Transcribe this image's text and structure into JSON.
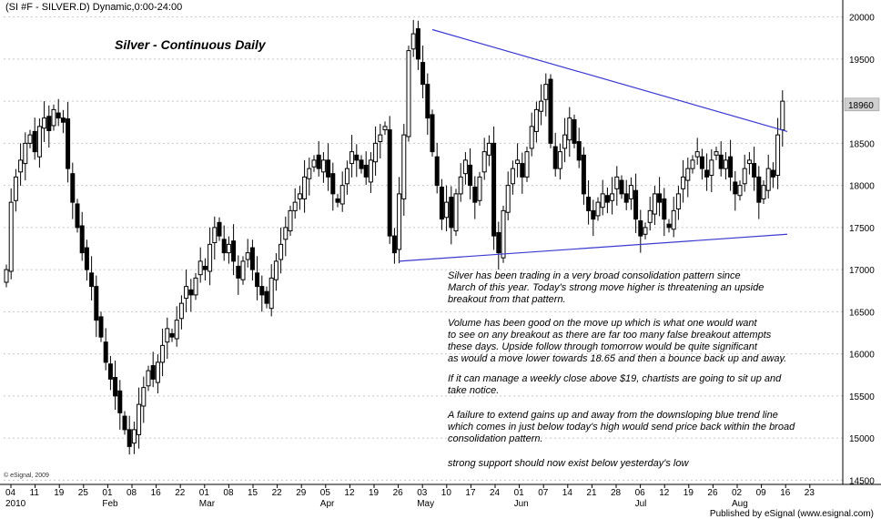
{
  "header": {
    "symbol_text": "(SI #F - SILVER.D) Dynamic,0:00-24:00"
  },
  "footer": {
    "published": "Published by eSignal (www.esignal.com)",
    "copyright": "© eSignal, 2009"
  },
  "annotations": [
    "Silver has been trading in a very broad consolidation pattern since\nMarch of this year. Today's strong move higher is threatening an upside\nbreakout from that pattern.",
    "Volume has been good on the move up which is what one would want\nto see on any breakout as there are far too many false breakout attempts\nthese days. Upside follow through tomorrow would be quite significant\nas would a move lower towards 18.65 and then a bounce back up and away.",
    "If it can manage a weekly close above $19, chartists are going to sit up and\ntake notice.",
    "A failure to extend gains up and away from the downsloping blue trend line\nwhich comes in just below today's high would send price back within the broad\nconsolidation pattern.",
    "strong support should now exist below yesterday's low"
  ],
  "colors": {
    "candle": "#000000",
    "trendline": "#3a3ad0",
    "grid": "#c8c8c8",
    "last_price_box": "#cfcfcf"
  },
  "chart_data": {
    "type": "candlestick",
    "title": "Silver - Continuous Daily",
    "ylim": [
      14450,
      20050
    ],
    "y_ticks": [
      "20000",
      "19500",
      "19000",
      "18500",
      "18000",
      "17500",
      "17000",
      "16500",
      "16000",
      "15500",
      "15000",
      "14500"
    ],
    "last_price": "18960",
    "x_day_labels": [
      "04",
      "11",
      "19",
      "25",
      "01",
      "08",
      "16",
      "22",
      "01",
      "08",
      "15",
      "22",
      "29",
      "05",
      "12",
      "19",
      "26",
      "03",
      "10",
      "17",
      "24",
      "01",
      "07",
      "14",
      "21",
      "28",
      "06",
      "12",
      "19",
      "26",
      "02",
      "09",
      "16",
      "23"
    ],
    "x_month_labels": [
      {
        "label": "2010",
        "at_day": 0
      },
      {
        "label": "Feb",
        "at_day": 4
      },
      {
        "label": "Mar",
        "at_day": 8
      },
      {
        "label": "Apr",
        "at_day": 13
      },
      {
        "label": "May",
        "at_day": 17
      },
      {
        "label": "Jun",
        "at_day": 21
      },
      {
        "label": "Jul",
        "at_day": 26
      },
      {
        "label": "Aug",
        "at_day": 30
      }
    ],
    "candle_count": 165,
    "closes": [
      17000,
      17800,
      18100,
      18300,
      18500,
      18600,
      18400,
      18700,
      18800,
      18650,
      18900,
      18800,
      18750,
      18200,
      17800,
      17500,
      17200,
      17000,
      16800,
      16400,
      16200,
      15900,
      15700,
      15500,
      15300,
      15100,
      14900,
      15100,
      15400,
      15600,
      15800,
      15700,
      15900,
      16100,
      16300,
      16200,
      16400,
      16600,
      16800,
      16700,
      16900,
      17100,
      17000,
      17300,
      17500,
      17400,
      17200,
      17300,
      17100,
      16900,
      17100,
      17200,
      17000,
      16800,
      16700,
      16600,
      16900,
      17100,
      17300,
      17500,
      17700,
      17800,
      17900,
      18100,
      18200,
      18300,
      18200,
      18300,
      18100,
      17900,
      17800,
      18000,
      18200,
      18400,
      18300,
      18200,
      18100,
      18300,
      18500,
      18600,
      18700,
      17400,
      17200,
      17900,
      18600,
      19600,
      19800,
      19500,
      19200,
      18800,
      18400,
      18000,
      17600,
      17800,
      17500,
      17900,
      18100,
      18300,
      18000,
      17800,
      18100,
      18400,
      18500,
      17400,
      17200,
      17700,
      18000,
      18200,
      18300,
      18100,
      18400,
      18700,
      18900,
      19000,
      19200,
      18500,
      18200,
      18400,
      18600,
      18800,
      18500,
      18300,
      17900,
      17700,
      17600,
      17800,
      17900,
      17800,
      17900,
      18100,
      17900,
      17800,
      18000,
      17600,
      17400,
      17500,
      17700,
      17900,
      17800,
      17600,
      17500,
      17700,
      17900,
      18100,
      18200,
      18300,
      18400,
      18200,
      18100,
      18300,
      18400,
      18200,
      18300,
      18100,
      17900,
      18000,
      18200,
      18300,
      18100,
      17800,
      18000,
      18200,
      18100,
      18600,
      19000
    ],
    "trendlines": [
      {
        "name": "upper",
        "from": {
          "day": 90,
          "value": 19850
        },
        "to": {
          "day": 165,
          "value": 18640
        }
      },
      {
        "name": "lower",
        "from": {
          "day": 83,
          "value": 17100
        },
        "to": {
          "day": 165,
          "value": 17420
        }
      }
    ]
  }
}
